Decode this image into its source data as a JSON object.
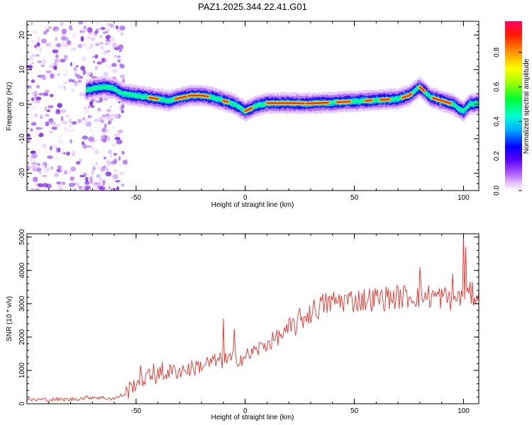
{
  "title": "PAZ1.2025.344.22.41.G01",
  "chart_data": [
    {
      "type": "heatmap",
      "name": "spectrogram",
      "xlabel": "Height of straight line (km)",
      "ylabel": "Frequency (Hz)",
      "xlim": [
        -100,
        107
      ],
      "ylim": [
        -25,
        24
      ],
      "xticks": [
        -50,
        0,
        50,
        100
      ],
      "yticks": [
        20,
        10,
        0,
        -10,
        -20
      ],
      "ridge": {
        "x": [
          -73,
          -70,
          -65,
          -60,
          -56,
          -50,
          -45,
          -40,
          -35,
          -30,
          -25,
          -20,
          -15,
          -10,
          -5,
          0,
          5,
          10,
          20,
          30,
          40,
          50,
          60,
          70,
          75,
          78,
          80,
          85,
          90,
          95,
          100,
          103,
          107
        ],
        "freq": [
          4,
          4.5,
          5,
          4.5,
          3,
          2.5,
          2,
          1.5,
          1,
          1.8,
          2.5,
          2.5,
          2,
          1,
          0,
          -2,
          -0.5,
          0.3,
          0.3,
          0.2,
          0.5,
          0.8,
          1.2,
          1.5,
          2.5,
          4,
          5,
          2,
          1,
          0,
          -2,
          0,
          0.3
        ]
      },
      "colorbar": {
        "label": "Normalized spectral amplitude",
        "ticks": [
          "0.0",
          "0.2",
          "0.4",
          "0.6",
          "0.8"
        ],
        "tick_values": [
          0,
          0.2,
          0.4,
          0.6,
          0.8
        ],
        "range": [
          0,
          0.98
        ]
      }
    },
    {
      "type": "line",
      "name": "snr",
      "xlabel": "Height of straight line (km)",
      "ylabel": "SNR (10 * v/v)",
      "xlim": [
        -100,
        107
      ],
      "ylim": [
        0,
        5100
      ],
      "xticks": [
        -50,
        0,
        50,
        100
      ],
      "yticks": [
        0,
        1000,
        2000,
        3000,
        4000,
        5000
      ],
      "series_color": "#e8322d",
      "trend": {
        "x": [
          -100,
          -80,
          -70,
          -60,
          -55,
          -52,
          -50,
          -45,
          -40,
          -35,
          -30,
          -25,
          -20,
          -15,
          -10,
          -5,
          0,
          5,
          10,
          15,
          20,
          25,
          30,
          35,
          40,
          45,
          50,
          60,
          70,
          80,
          90,
          95,
          100,
          107
        ],
        "y": [
          120,
          130,
          200,
          150,
          300,
          500,
          650,
          800,
          850,
          950,
          1000,
          1050,
          1150,
          1250,
          1300,
          1350,
          1400,
          1600,
          1800,
          2000,
          2200,
          2500,
          2750,
          2950,
          3050,
          3100,
          3100,
          3150,
          3200,
          3250,
          3200,
          3150,
          3250,
          3300
        ]
      },
      "spikes": [
        {
          "x": -48,
          "y": 1150
        },
        {
          "x": -42,
          "y": 1200
        },
        {
          "x": -38,
          "y": 1250
        },
        {
          "x": -10,
          "y": 2550
        },
        {
          "x": -5,
          "y": 2250
        },
        {
          "x": 80,
          "y": 4100
        },
        {
          "x": 95,
          "y": 3900
        },
        {
          "x": 100,
          "y": 5100
        },
        {
          "x": 101,
          "y": 4700
        }
      ]
    }
  ]
}
